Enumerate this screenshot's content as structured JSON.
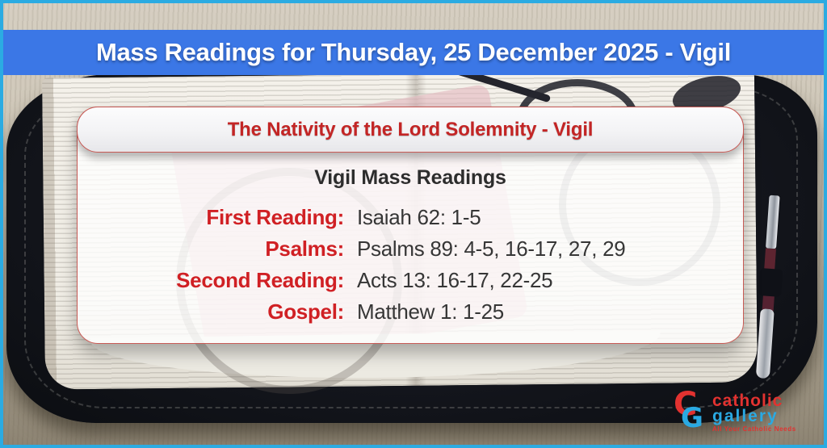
{
  "banner": {
    "title": "Mass Readings for Thursday, 25 December 2025 - Vigil"
  },
  "card": {
    "title": "The Nativity of the Lord Solemnity - Vigil",
    "section_heading": "Vigil Mass Readings",
    "readings": [
      {
        "label": "First Reading:",
        "value": "Isaiah 62: 1-5"
      },
      {
        "label": "Psalms:",
        "value": "Psalms 89: 4-5, 16-17, 27, 29"
      },
      {
        "label": "Second Reading:",
        "value": "Acts 13: 16-17, 22-25"
      },
      {
        "label": "Gospel:",
        "value": "Matthew 1: 1-25"
      }
    ]
  },
  "logo": {
    "monogram_c": "C",
    "monogram_g": "G",
    "word1": "catholic",
    "word2": "gallery",
    "tagline": "All Your Catholic Needs"
  },
  "colors": {
    "banner_blue": "#3b77e6",
    "frame_cyan": "#2babe2",
    "accent_red": "#c32525",
    "label_red": "#d02024",
    "logo_red": "#e23230",
    "logo_blue": "#2aa9e2"
  }
}
